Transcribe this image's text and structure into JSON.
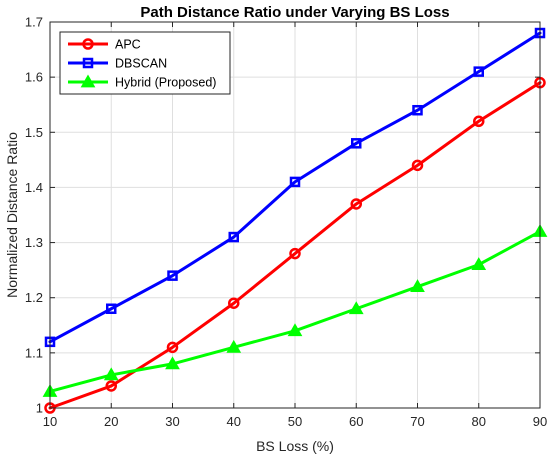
{
  "chart_data": {
    "type": "line",
    "title": "Path Distance Ratio under Varying BS Loss",
    "xlabel": "BS Loss (%)",
    "ylabel": "Normalized Distance Ratio",
    "x": [
      10,
      20,
      30,
      40,
      50,
      60,
      70,
      80,
      90
    ],
    "xlim": [
      10,
      90
    ],
    "ylim": [
      1.0,
      1.7
    ],
    "xticks": [
      "10",
      "20",
      "30",
      "40",
      "50",
      "60",
      "70",
      "80",
      "90"
    ],
    "yticks": [
      "1",
      "1.1",
      "1.2",
      "1.3",
      "1.4",
      "1.5",
      "1.6",
      "1.7"
    ],
    "grid": true,
    "legend_position": "top-left",
    "series": [
      {
        "name": "APC",
        "color": "#ff0000",
        "marker": "circle",
        "values": [
          1.0,
          1.04,
          1.11,
          1.19,
          1.28,
          1.37,
          1.44,
          1.52,
          1.59
        ]
      },
      {
        "name": "DBSCAN",
        "color": "#0000ff",
        "marker": "square",
        "values": [
          1.12,
          1.18,
          1.24,
          1.31,
          1.41,
          1.48,
          1.54,
          1.61,
          1.68
        ]
      },
      {
        "name": "Hybrid (Proposed)",
        "color": "#00ff00",
        "marker": "triangle",
        "values": [
          1.03,
          1.06,
          1.08,
          1.11,
          1.14,
          1.18,
          1.22,
          1.26,
          1.32
        ]
      }
    ]
  }
}
